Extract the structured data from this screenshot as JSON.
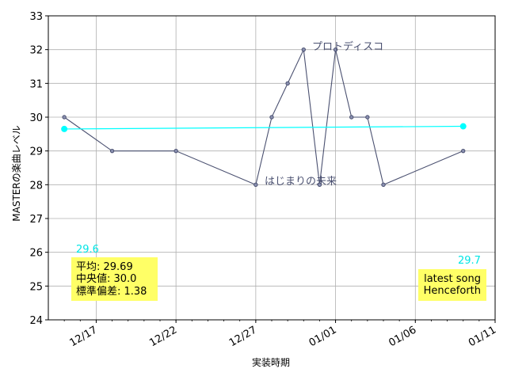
{
  "chart_data": {
    "type": "line",
    "xlabel": "実装時期",
    "ylabel": "MASTERの楽曲レベル",
    "ylim": [
      24,
      33
    ],
    "yticks": [
      24,
      25,
      26,
      27,
      28,
      29,
      30,
      31,
      32,
      33
    ],
    "xlim": [
      "2019-12-14",
      "2020-01-11"
    ],
    "xticks": [
      {
        "date": "2019-12-17",
        "label": "12/17"
      },
      {
        "date": "2019-12-22",
        "label": "12/22"
      },
      {
        "date": "2019-12-27",
        "label": "12/27"
      },
      {
        "date": "2020-01-01",
        "label": "01/01"
      },
      {
        "date": "2020-01-06",
        "label": "01/06"
      },
      {
        "date": "2020-01-11",
        "label": "01/11"
      }
    ],
    "grid": true,
    "series": [
      {
        "color": "#4a5070",
        "points": [
          {
            "x": "2019-12-15",
            "y": 30
          },
          {
            "x": "2019-12-18",
            "y": 29
          },
          {
            "x": "2019-12-22",
            "y": 29
          },
          {
            "x": "2019-12-27",
            "y": 28
          },
          {
            "x": "2019-12-28",
            "y": 30
          },
          {
            "x": "2019-12-29",
            "y": 31
          },
          {
            "x": "2019-12-30",
            "y": 32
          },
          {
            "x": "2019-12-31",
            "y": 28
          },
          {
            "x": "2020-01-01",
            "y": 32
          },
          {
            "x": "2020-01-02",
            "y": 30
          },
          {
            "x": "2020-01-03",
            "y": 30
          },
          {
            "x": "2020-01-04",
            "y": 28
          },
          {
            "x": "2020-01-09",
            "y": 29
          }
        ]
      },
      {
        "color": "#00ffff",
        "points": [
          {
            "x": "2019-12-15",
            "y": 29.65
          },
          {
            "x": "2020-01-09",
            "y": 29.73
          }
        ]
      }
    ],
    "annotations": [
      {
        "text": "プロトディスコ",
        "x": "2019-12-30",
        "y": 32
      },
      {
        "text": "はじまりの未来",
        "x": "2019-12-27",
        "y": 28
      }
    ],
    "trend_labels": {
      "start": "29.6",
      "end": "29.7"
    },
    "stats_box": {
      "mean": "平均: 29.69",
      "median": "中央値: 30.0",
      "std": "標準偏差:  1.38"
    },
    "latest_box": {
      "line1": "latest song",
      "line2": "Henceforth"
    }
  }
}
